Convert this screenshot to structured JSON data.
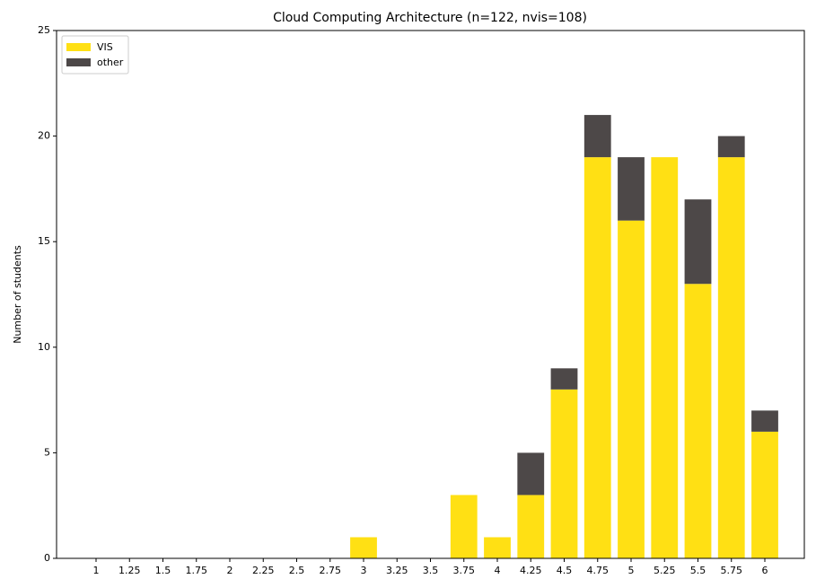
{
  "chart_data": {
    "type": "bar",
    "stacked": true,
    "title": "Cloud Computing Architecture (n=122, nvis=108)",
    "y_label": "Number of students",
    "categories": [
      "1",
      "1.25",
      "1.5",
      "1.75",
      "2",
      "2.25",
      "2.5",
      "2.75",
      "3",
      "3.25",
      "3.5",
      "3.75",
      "4",
      "4.25",
      "4.5",
      "4.75",
      "5",
      "5.25",
      "5.5",
      "5.75",
      "6"
    ],
    "series": [
      {
        "name": "VIS",
        "color": "#ffe014",
        "values": [
          0,
          0,
          0,
          0,
          0,
          0,
          0,
          0,
          1,
          0,
          0,
          3,
          1,
          3,
          8,
          19,
          16,
          19,
          13,
          19,
          6
        ]
      },
      {
        "name": "other",
        "color": "#4d4848",
        "values": [
          0,
          0,
          0,
          0,
          0,
          0,
          0,
          0,
          0,
          0,
          0,
          0,
          0,
          2,
          1,
          2,
          3,
          0,
          4,
          1,
          1
        ]
      }
    ],
    "ylim": [
      0,
      25
    ],
    "yticks": [
      0,
      5,
      10,
      15,
      20,
      25
    ],
    "grid": false,
    "legend": "upper left"
  }
}
